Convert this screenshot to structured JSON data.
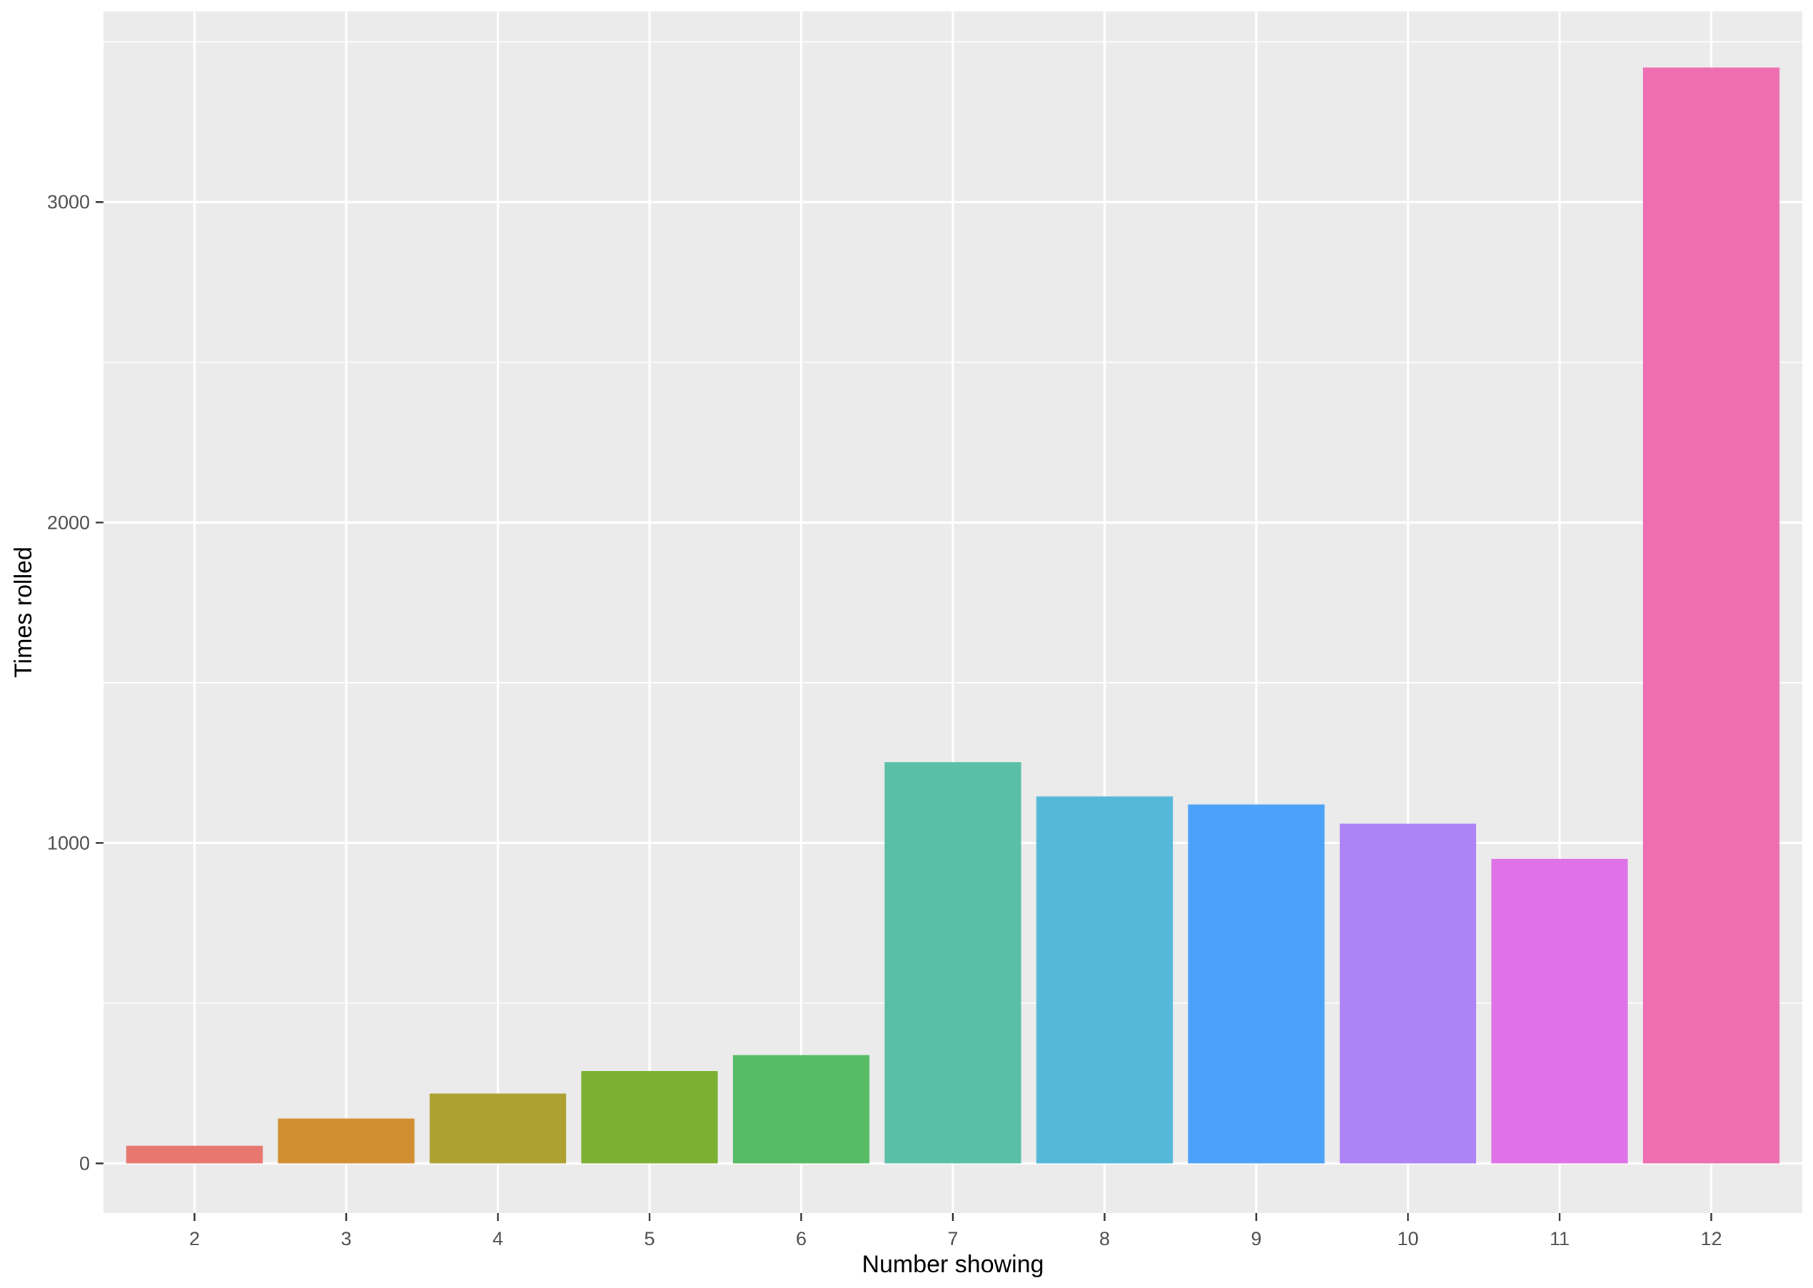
{
  "chart_data": {
    "type": "bar",
    "title": "",
    "xlabel": "Number showing",
    "ylabel": "Times rolled",
    "categories": [
      "2",
      "3",
      "4",
      "5",
      "6",
      "7",
      "8",
      "9",
      "10",
      "11",
      "12"
    ],
    "values": [
      55,
      140,
      218,
      288,
      338,
      1252,
      1145,
      1120,
      1060,
      950,
      3420
    ],
    "ylim": [
      -155,
      3595
    ],
    "yticks": [
      0,
      1000,
      2000,
      3000
    ],
    "grid": true,
    "legend": "none",
    "colors": [
      "#E7776F",
      "#D18F32",
      "#ADA131",
      "#7BB133",
      "#55BB65",
      "#5BBFA8",
      "#55B8D9",
      "#4CA2F8",
      "#AE83F5",
      "#DF72E6",
      "#EE6EB2"
    ],
    "panel_background": "#EBEBEB",
    "grid_color": "#FFFFFF"
  }
}
